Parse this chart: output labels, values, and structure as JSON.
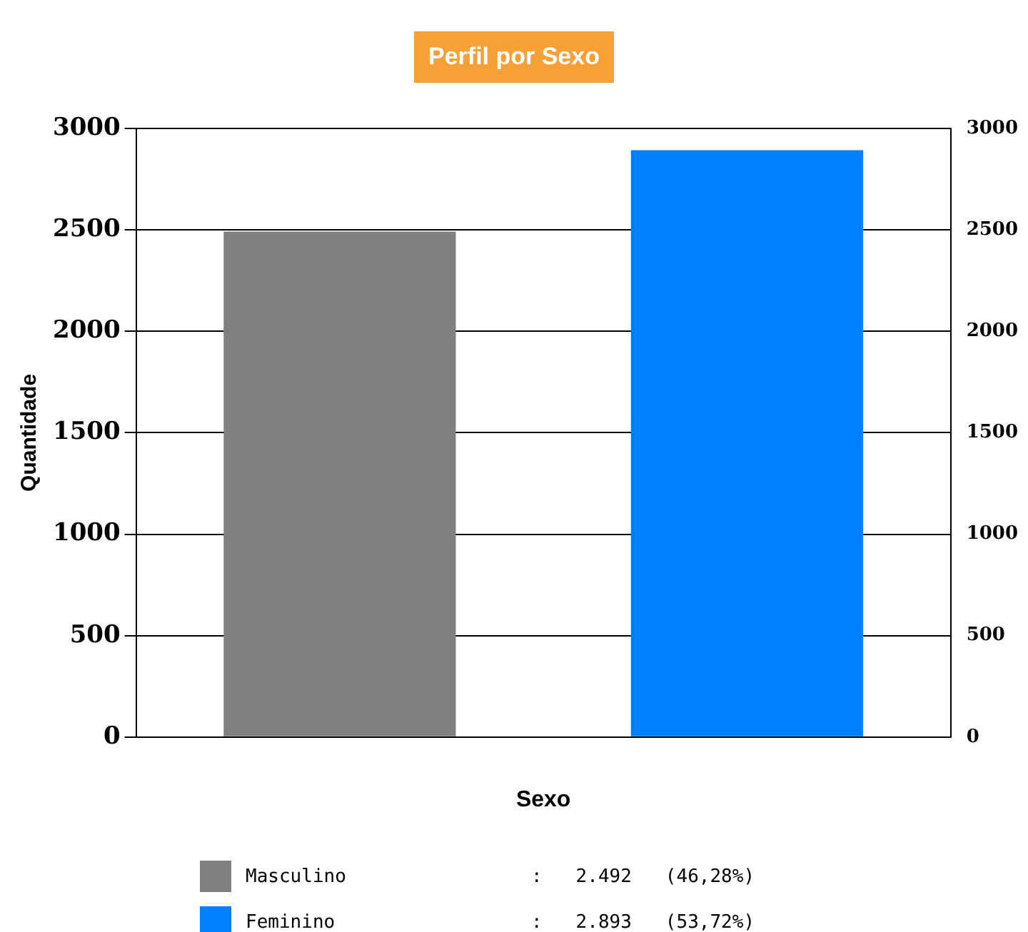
{
  "chart_data": {
    "type": "bar",
    "title": "Perfil por Sexo",
    "xlabel": "Sexo",
    "ylabel": "Quantidade",
    "categories": [
      null,
      null
    ],
    "series": [
      {
        "name": "Masculino",
        "color": "#808080",
        "values": [
          2492,
          null
        ]
      },
      {
        "name": "Feminino",
        "color": "#0080ff",
        "values": [
          null,
          2893
        ]
      }
    ],
    "annotations": [
      ":   2.492   (46,28%)",
      ":   2.893   (53,72%)"
    ],
    "ylim": [
      0,
      3000
    ],
    "yticks": [
      0,
      500,
      1000,
      1500,
      2000,
      2500,
      3000
    ],
    "y2lim": [
      0,
      3000
    ],
    "y2ticks": [
      0,
      500,
      1000,
      1500,
      2000,
      2500,
      3000
    ],
    "grid": "y",
    "legend": "bottom"
  }
}
